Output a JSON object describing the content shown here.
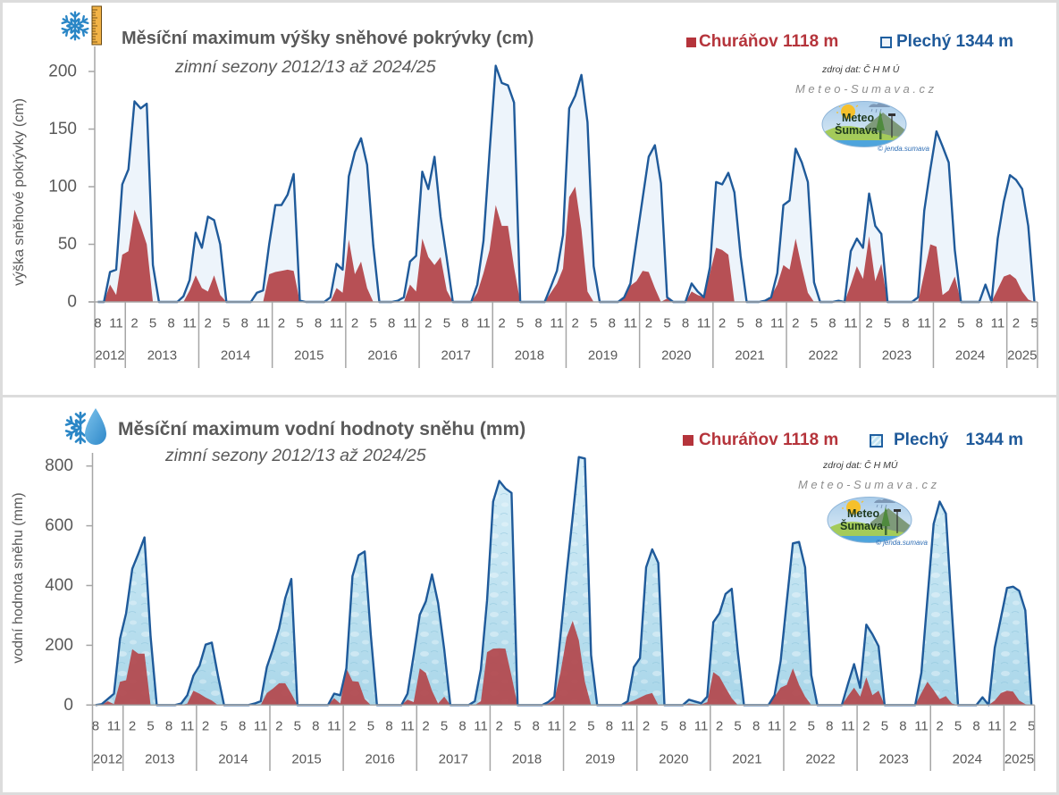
{
  "panels": [
    {
      "id": "snow-depth",
      "source": "zdroj dat: Č H M Ú",
      "site": "Meteo-Sumava.cz",
      "logo": {
        "line1": "Meteo",
        "line2": "Šumava",
        "credit": "© jenda.sumava"
      }
    },
    {
      "id": "snow-water-equivalent",
      "source": "zdroj dat: Č H MÚ",
      "site": "Meteo-Sumava.cz",
      "logo": {
        "line1": "Meteo",
        "line2": "Šumava",
        "credit": "© jenda.sumava"
      }
    }
  ],
  "chart_data": [
    {
      "type": "area",
      "title": "Měsíční maximum výšky sněhové pokrývky (cm)",
      "subtitle": "zimní sezony 2012/13 až 2024/25",
      "xlabel": "",
      "ylabel": "výška sněhové pokrývky (cm)",
      "ylim": [
        0,
        200
      ],
      "yticks": [
        0,
        50,
        100,
        150,
        200
      ],
      "ytick_labels": [
        "0",
        "50",
        "100",
        "150",
        "200"
      ],
      "grid": false,
      "legend_position": "top-right",
      "x_unit": "month",
      "x_start": "2012-08",
      "x_end": "2025-05",
      "x_month_tick_labels": [
        "8",
        "11",
        "2",
        "5",
        "8",
        "11",
        "2",
        "5",
        "8",
        "11",
        "2",
        "5",
        "8",
        "11",
        "2",
        "5",
        "8",
        "11",
        "2",
        "5",
        "8",
        "11",
        "2",
        "5",
        "8",
        "11",
        "2",
        "5",
        "8",
        "11",
        "2",
        "5",
        "8",
        "11",
        "2",
        "5",
        "8",
        "11",
        "2",
        "5",
        "8",
        "11",
        "2",
        "5",
        "8",
        "11",
        "2",
        "5",
        "8",
        "11",
        "2",
        "5"
      ],
      "x_year_labels": [
        "2012",
        "2013",
        "2014",
        "2015",
        "2016",
        "2017",
        "2018",
        "2019",
        "2020",
        "2021",
        "2022",
        "2023",
        "2024",
        "2025"
      ],
      "series": [
        {
          "name": "Churáňov 1118 m",
          "station": "Churáňov",
          "altitude": "1118 m",
          "color": "#b5343b",
          "area_color": "#b4474c",
          "values": [
            0,
            0,
            15,
            6,
            41,
            44,
            80,
            66,
            50,
            0,
            0,
            0,
            0,
            0,
            0,
            10,
            23,
            12,
            9,
            23,
            6,
            0,
            0,
            0,
            0,
            0,
            0,
            0,
            24,
            26,
            27,
            28,
            27,
            0,
            0,
            0,
            0,
            0,
            0,
            12,
            8,
            54,
            24,
            35,
            12,
            0,
            0,
            0,
            0,
            0,
            0,
            15,
            9,
            55,
            39,
            32,
            39,
            10,
            0,
            0,
            0,
            0,
            8,
            25,
            45,
            84,
            66,
            66,
            30,
            0,
            0,
            0,
            0,
            0,
            8,
            16,
            29,
            91,
            100,
            63,
            9,
            0,
            0,
            0,
            0,
            0,
            4,
            14,
            18,
            27,
            26,
            12,
            0,
            3,
            0,
            0,
            0,
            9,
            6,
            4,
            25,
            47,
            45,
            41,
            0,
            0,
            0,
            0,
            0,
            0,
            5,
            15,
            32,
            28,
            55,
            30,
            8,
            0,
            0,
            0,
            0,
            0,
            0,
            15,
            31,
            20,
            57,
            18,
            33,
            0,
            0,
            0,
            0,
            0,
            0,
            25,
            50,
            48,
            6,
            10,
            22,
            0,
            0,
            0,
            0,
            0,
            0,
            11,
            22,
            24,
            20,
            9,
            2,
            0
          ]
        },
        {
          "name": "Plechý 1344 m",
          "station": "Plechý",
          "altitude": "1344 m",
          "color": "#1f5a9a",
          "area_color": "#edf4fb",
          "values": [
            0,
            0,
            26,
            28,
            102,
            115,
            174,
            168,
            172,
            32,
            0,
            0,
            0,
            0,
            5,
            19,
            60,
            47,
            74,
            71,
            50,
            0,
            0,
            0,
            0,
            0,
            8,
            10,
            50,
            84,
            84,
            93,
            111,
            1,
            0,
            0,
            0,
            0,
            4,
            33,
            28,
            109,
            130,
            142,
            119,
            49,
            0,
            0,
            0,
            1,
            4,
            35,
            40,
            113,
            98,
            126,
            74,
            38,
            0,
            0,
            0,
            0,
            15,
            53,
            130,
            205,
            190,
            188,
            173,
            0,
            0,
            0,
            0,
            0,
            13,
            27,
            58,
            168,
            179,
            197,
            156,
            31,
            0,
            0,
            0,
            0,
            4,
            16,
            53,
            90,
            126,
            136,
            103,
            4,
            0,
            0,
            0,
            16,
            9,
            4,
            30,
            104,
            102,
            112,
            95,
            40,
            0,
            0,
            0,
            1,
            4,
            25,
            84,
            88,
            133,
            121,
            104,
            17,
            0,
            0,
            0,
            1,
            0,
            44,
            55,
            47,
            94,
            66,
            59,
            0,
            0,
            0,
            0,
            0,
            4,
            79,
            115,
            148,
            135,
            121,
            45,
            0,
            0,
            0,
            0,
            15,
            0,
            55,
            87,
            110,
            106,
            98,
            66,
            0
          ]
        }
      ]
    },
    {
      "type": "area",
      "title": "Měsíční maximum vodní hodnoty sněhu (mm)",
      "subtitle": "zimní sezony 2012/13 až 2024/25",
      "xlabel": "",
      "ylabel": "vodní hodnota sněhu (mm)",
      "ylim": [
        0,
        800
      ],
      "yticks": [
        0,
        200,
        400,
        600,
        800
      ],
      "ytick_labels": [
        "0",
        "200",
        "400",
        "600",
        "800"
      ],
      "grid": false,
      "legend_position": "top-right",
      "x_unit": "month",
      "x_start": "2012-08",
      "x_end": "2025-05",
      "x_month_tick_labels": [
        "8",
        "11",
        "2",
        "5",
        "8",
        "11",
        "2",
        "5",
        "8",
        "11",
        "2",
        "5",
        "8",
        "11",
        "2",
        "5",
        "8",
        "11",
        "2",
        "5",
        "8",
        "11",
        "2",
        "5",
        "8",
        "11",
        "2",
        "5",
        "8",
        "11",
        "2",
        "5",
        "8",
        "11",
        "2",
        "5",
        "8",
        "11",
        "2",
        "5",
        "8",
        "11",
        "2",
        "5",
        "8",
        "11",
        "2",
        "5",
        "8",
        "11",
        "2",
        "5"
      ],
      "x_year_labels": [
        "2012",
        "2013",
        "2014",
        "2015",
        "2016",
        "2017",
        "2018",
        "2019",
        "2020",
        "2021",
        "2022",
        "2023",
        "2024",
        "2025"
      ],
      "series": [
        {
          "name": "Churáňov 1118 m",
          "station": "Churáňov",
          "altitude": "1118 m",
          "color": "#b5343b",
          "area_color": "#b34b50",
          "values": [
            0,
            0,
            13,
            3,
            78,
            83,
            187,
            172,
            172,
            0,
            0,
            0,
            0,
            0,
            0,
            5,
            48,
            38,
            25,
            15,
            0,
            0,
            0,
            0,
            0,
            0,
            0,
            0,
            40,
            55,
            73,
            73,
            38,
            0,
            0,
            0,
            0,
            0,
            0,
            23,
            5,
            123,
            80,
            78,
            20,
            0,
            0,
            0,
            0,
            0,
            0,
            18,
            10,
            123,
            108,
            48,
            5,
            28,
            0,
            0,
            0,
            0,
            0,
            13,
            177,
            189,
            190,
            189,
            97,
            0,
            0,
            0,
            0,
            0,
            5,
            18,
            108,
            227,
            282,
            217,
            78,
            0,
            0,
            0,
            0,
            0,
            0,
            8,
            15,
            25,
            35,
            40,
            0,
            0,
            0,
            0,
            0,
            5,
            3,
            2,
            10,
            110,
            95,
            58,
            23,
            0,
            0,
            0,
            0,
            0,
            0,
            28,
            58,
            68,
            123,
            68,
            28,
            0,
            0,
            0,
            0,
            0,
            0,
            30,
            58,
            28,
            93,
            33,
            48,
            0,
            0,
            0,
            0,
            0,
            0,
            40,
            78,
            50,
            20,
            30,
            5,
            0,
            0,
            0,
            0,
            0,
            0,
            15,
            40,
            48,
            45,
            15,
            3,
            0
          ]
        },
        {
          "name": "Plechý 1344 m",
          "station": "Plechý",
          "altitude": "1344 m",
          "color": "#1f5a9a",
          "area_color": "#c2e3f0",
          "values": [
            0,
            3,
            20,
            38,
            222,
            307,
            456,
            506,
            561,
            230,
            0,
            0,
            0,
            0,
            5,
            33,
            98,
            132,
            202,
            209,
            100,
            0,
            0,
            0,
            0,
            0,
            5,
            13,
            127,
            187,
            257,
            357,
            422,
            0,
            0,
            0,
            0,
            0,
            0,
            38,
            33,
            123,
            431,
            501,
            514,
            236,
            0,
            0,
            0,
            0,
            0,
            38,
            167,
            302,
            347,
            437,
            342,
            186,
            0,
            0,
            0,
            0,
            13,
            120,
            350,
            681,
            750,
            725,
            710,
            0,
            0,
            0,
            0,
            0,
            10,
            28,
            230,
            440,
            630,
            830,
            825,
            167,
            0,
            0,
            0,
            0,
            0,
            13,
            127,
            157,
            461,
            521,
            476,
            0,
            0,
            0,
            0,
            18,
            12,
            6,
            28,
            277,
            307,
            372,
            389,
            177,
            0,
            0,
            0,
            0,
            0,
            33,
            147,
            347,
            541,
            546,
            461,
            100,
            0,
            0,
            0,
            0,
            0,
            70,
            137,
            58,
            269,
            237,
            197,
            0,
            0,
            0,
            0,
            0,
            0,
            108,
            357,
            606,
            681,
            641,
            311,
            0,
            0,
            0,
            0,
            26,
            0,
            192,
            292,
            392,
            396,
            382,
            317,
            0
          ]
        }
      ]
    }
  ]
}
